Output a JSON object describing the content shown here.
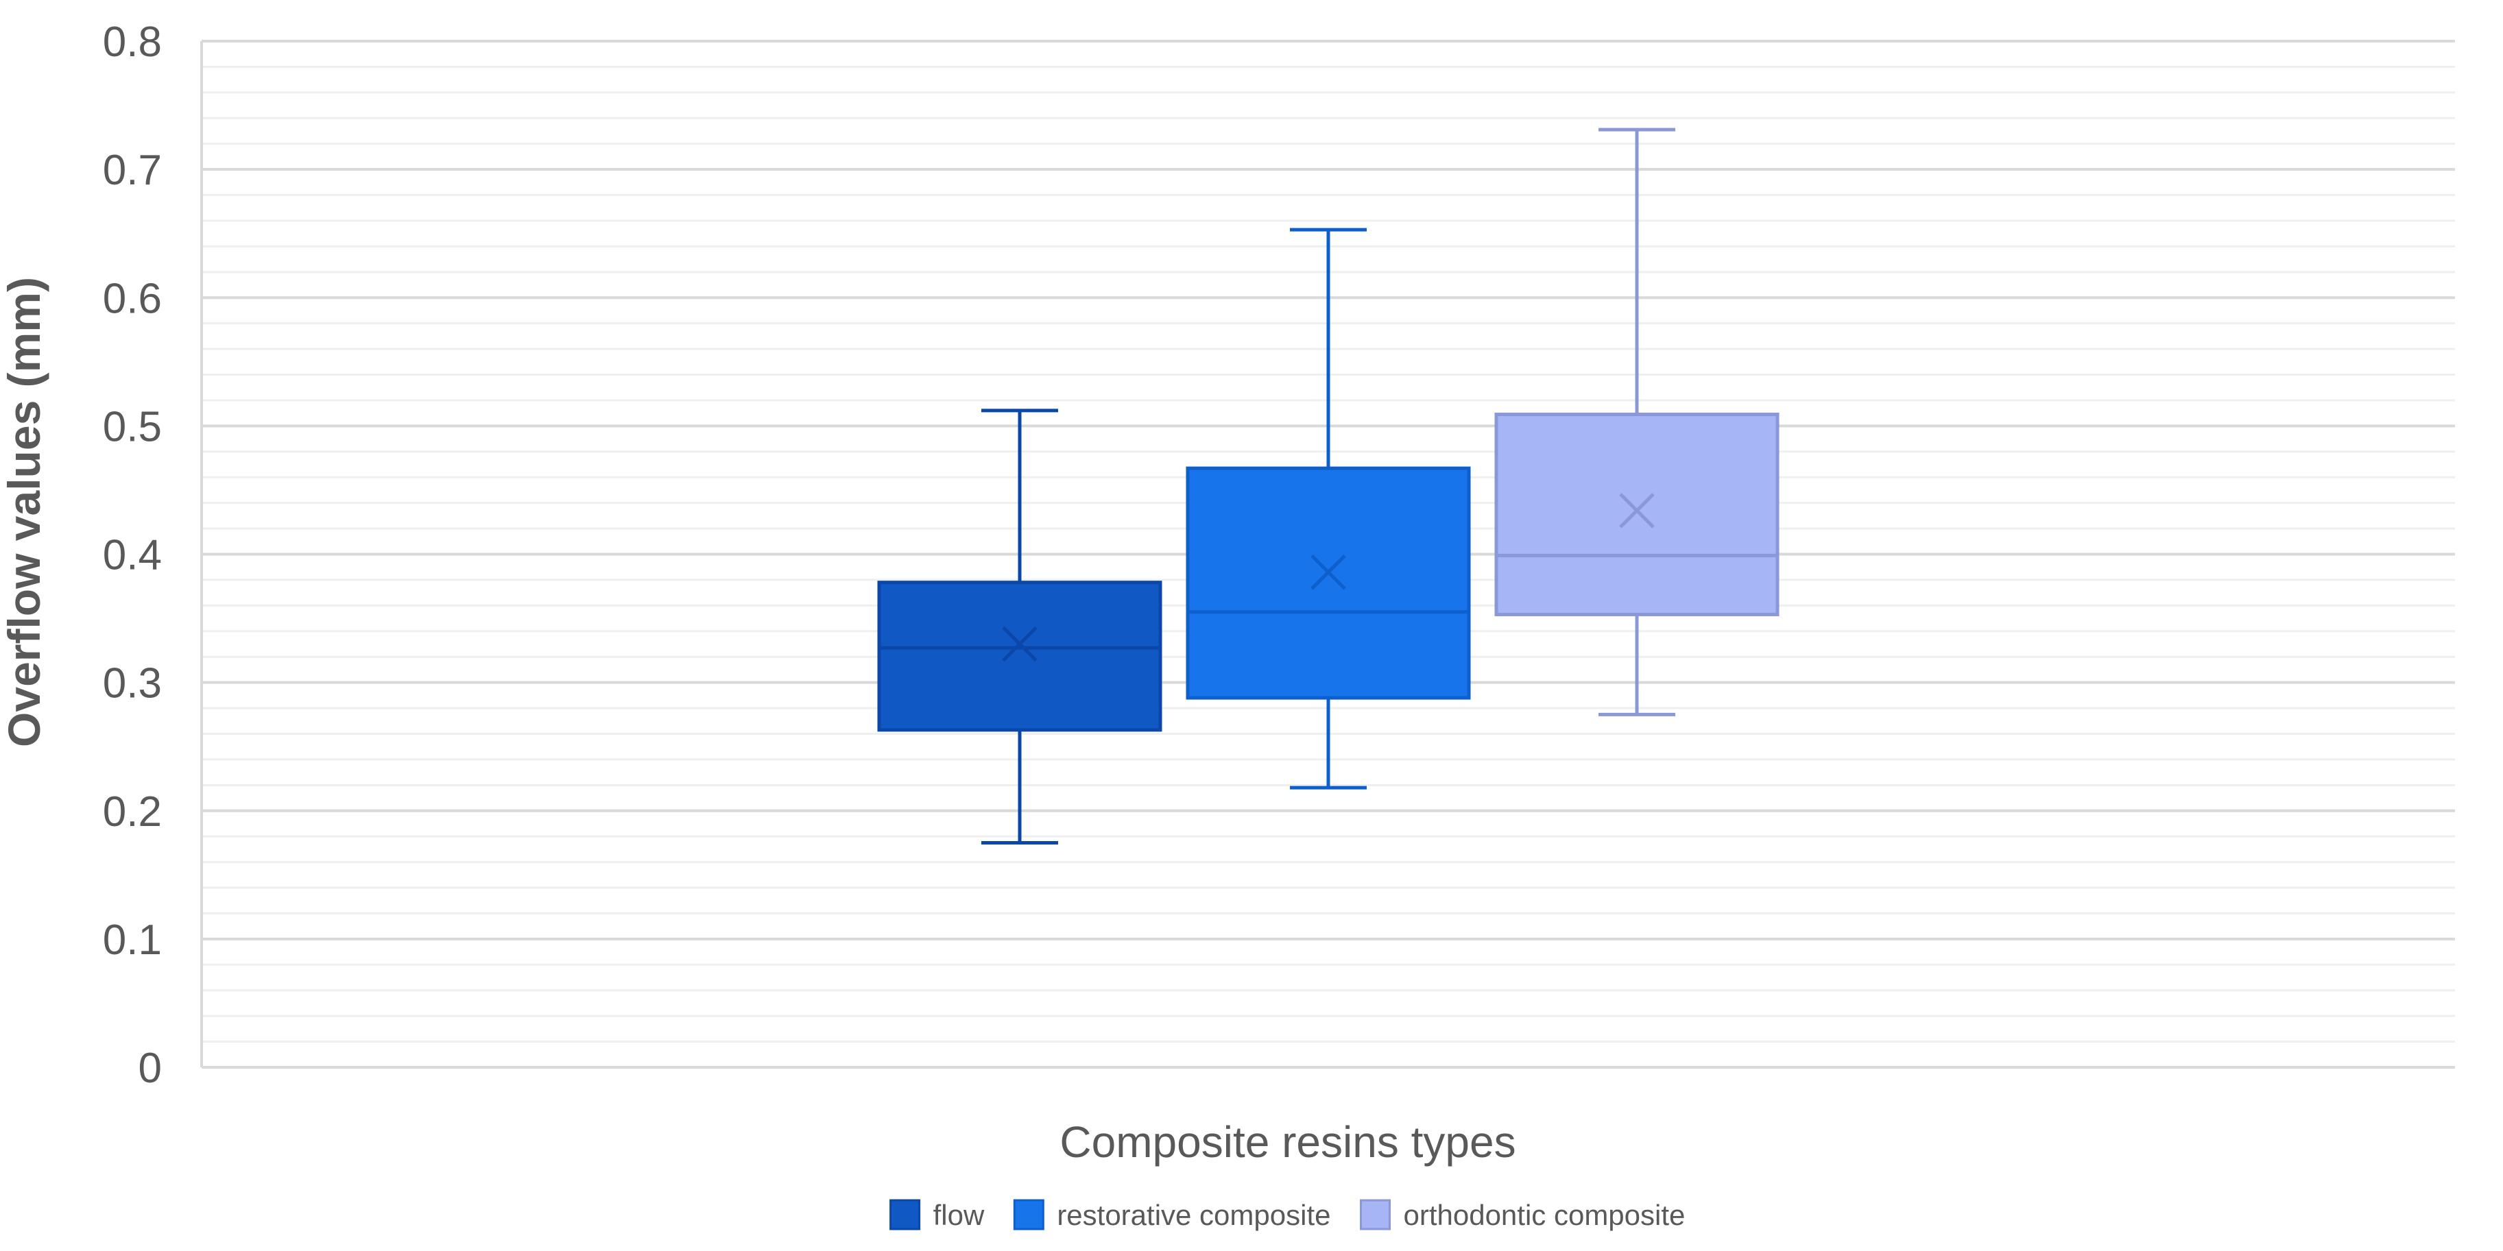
{
  "chart_data": {
    "type": "box",
    "title": "",
    "xlabel": "Composite resins types",
    "ylabel": "Overflow values (mm)",
    "ylim": [
      0,
      0.8
    ],
    "y_ticks": [
      "0",
      "0.1",
      "0.2",
      "0.3",
      "0.4",
      "0.5",
      "0.6",
      "0.7",
      "0.8"
    ],
    "grid": true,
    "legend_position": "bottom",
    "series": [
      {
        "name": "flow",
        "color": "#1059C4",
        "min": 0.175,
        "q1": 0.263,
        "median": 0.327,
        "mean": 0.33,
        "q3": 0.378,
        "max": 0.512
      },
      {
        "name": "restorative composite",
        "color": "#1874EB",
        "min": 0.218,
        "q1": 0.288,
        "median": 0.355,
        "mean": 0.386,
        "q3": 0.467,
        "max": 0.653
      },
      {
        "name": "orthodontic composite",
        "color": "#A6B5F5",
        "min": 0.275,
        "q1": 0.353,
        "median": 0.399,
        "mean": 0.434,
        "q3": 0.509,
        "max": 0.731
      }
    ]
  }
}
